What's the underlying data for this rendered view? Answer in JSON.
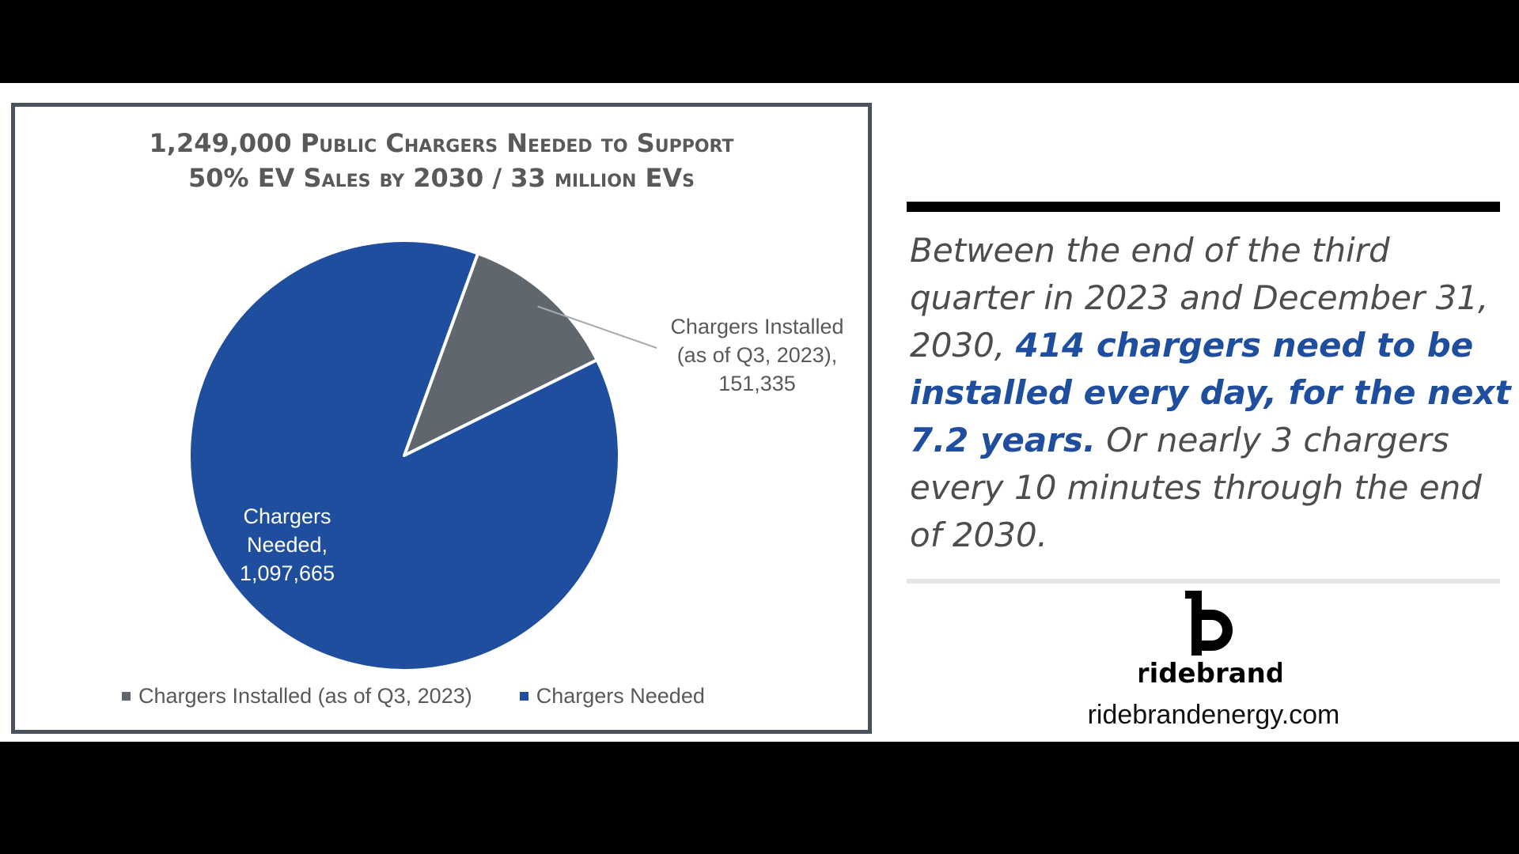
{
  "colors": {
    "installed": "#5f666e",
    "needed": "#1f4e9f",
    "highlight": "#1f4e9f"
  },
  "chart_data": {
    "type": "pie",
    "title_line1": "1,249,000 Public Chargers Needed to Support",
    "title_line2": "50% EV Sales by 2030 / 33 million EVs",
    "total": 1249000,
    "slices": [
      {
        "name": "Chargers Installed (as of Q3, 2023)",
        "value": 151335,
        "label_line1": "Chargers Installed",
        "label_line2": "(as of Q3, 2023),",
        "label_line3": "151,335"
      },
      {
        "name": "Chargers Needed",
        "value": 1097665,
        "label_line1": "Chargers",
        "label_line2": "Needed,",
        "label_line3": "1,097,665"
      }
    ],
    "legend": {
      "position": "bottom",
      "items": [
        "Chargers Installed (as of Q3, 2023)",
        "Chargers Needed"
      ]
    }
  },
  "quote": {
    "part1": "Between the end of the third quarter in 2023 and December 31, 2030, ",
    "highlight": "414 chargers need to be installed every day, for the next 7.2 years.",
    "part2": " Or nearly 3 chargers every 10 minutes through the end of 2030."
  },
  "brand": {
    "logo_icon": "ridebrand-logo-icon",
    "logo_text": "ridebrand",
    "url": "ridebrandenergy.com"
  }
}
